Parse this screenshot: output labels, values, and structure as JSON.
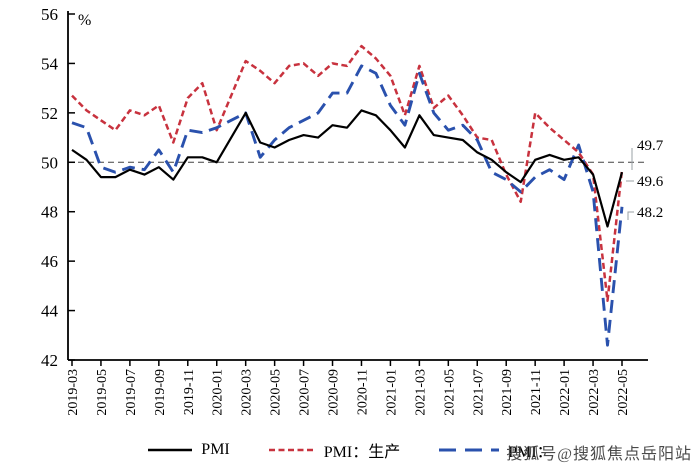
{
  "watermark": {
    "text": "搜狐号@搜狐焦点岳阳站"
  },
  "legend": {
    "items": [
      {
        "label": "PMI",
        "color": "#000000",
        "dash": "solid"
      },
      {
        "label": "PMI：生产",
        "color": "#c8323e",
        "dash": "short"
      },
      {
        "label": "PMI：",
        "color": "#2a51ad",
        "dash": "long"
      }
    ]
  },
  "chart_data": {
    "type": "line",
    "title": "",
    "xlabel": "",
    "ylabel": "%",
    "ylim": [
      42,
      56
    ],
    "yticks": [
      42,
      44,
      46,
      48,
      50,
      52,
      54,
      56
    ],
    "reference_line": 50,
    "grid": false,
    "legend_position": "bottom",
    "x": [
      "2019-03",
      "2019-04",
      "2019-05",
      "2019-06",
      "2019-07",
      "2019-08",
      "2019-09",
      "2019-10",
      "2019-11",
      "2019-12",
      "2020-01",
      "2020-02",
      "2020-03",
      "2020-04",
      "2020-05",
      "2020-06",
      "2020-07",
      "2020-08",
      "2020-09",
      "2020-10",
      "2020-11",
      "2020-12",
      "2021-01",
      "2021-02",
      "2021-03",
      "2021-04",
      "2021-05",
      "2021-06",
      "2021-07",
      "2021-08",
      "2021-09",
      "2021-10",
      "2021-11",
      "2021-12",
      "2022-01",
      "2022-02",
      "2022-03",
      "2022-04",
      "2022-05"
    ],
    "xtick_labels": [
      "2019-03",
      "2019-05",
      "2019-07",
      "2019-09",
      "2019-11",
      "2020-01",
      "2020-03",
      "2020-05",
      "2020-07",
      "2020-09",
      "2020-11",
      "2021-01",
      "2021-03",
      "2021-05",
      "2021-07",
      "2021-09",
      "2021-11",
      "2022-01",
      "2022-03",
      "2022-05"
    ],
    "series": [
      {
        "name": "PMI",
        "color": "#000000",
        "line_style": "solid",
        "values": [
          50.5,
          50.1,
          49.4,
          49.4,
          49.7,
          49.5,
          49.8,
          49.3,
          50.2,
          50.2,
          50.0,
          null,
          52.0,
          50.8,
          50.6,
          50.9,
          51.1,
          51.0,
          51.5,
          51.4,
          52.1,
          51.9,
          51.3,
          50.6,
          51.9,
          51.1,
          51.0,
          50.9,
          50.4,
          50.1,
          49.6,
          49.2,
          50.1,
          50.3,
          50.1,
          50.2,
          49.5,
          47.4,
          49.6
        ]
      },
      {
        "name": "PMI：生产",
        "color": "#c8323e",
        "line_style": "dash-short",
        "values": [
          52.7,
          52.1,
          51.7,
          51.3,
          52.1,
          51.9,
          52.3,
          50.8,
          52.6,
          53.2,
          51.3,
          null,
          54.1,
          53.7,
          53.2,
          53.9,
          54.0,
          53.5,
          54.0,
          53.9,
          54.7,
          54.2,
          53.5,
          51.9,
          53.9,
          52.2,
          52.7,
          51.9,
          51.0,
          50.9,
          49.5,
          48.4,
          52.0,
          51.4,
          50.9,
          50.4,
          49.5,
          44.4,
          49.7
        ]
      },
      {
        "name": "PMI：",
        "color": "#2a51ad",
        "line_style": "dash-long",
        "values": [
          51.6,
          51.4,
          49.8,
          49.6,
          49.8,
          49.7,
          50.5,
          49.6,
          51.3,
          51.2,
          51.4,
          null,
          52.0,
          50.2,
          50.9,
          51.4,
          51.7,
          52.0,
          52.8,
          52.8,
          53.9,
          53.6,
          52.3,
          51.5,
          53.6,
          52.0,
          51.3,
          51.5,
          50.9,
          49.6,
          49.3,
          48.8,
          49.4,
          49.7,
          49.3,
          50.7,
          48.8,
          42.6,
          48.2
        ]
      }
    ],
    "end_labels": [
      {
        "text": "49.7",
        "color": "#c8323e"
      },
      {
        "text": "49.6",
        "color": "#6f6ab2"
      },
      {
        "text": "48.2",
        "color": "#454a63"
      }
    ]
  }
}
